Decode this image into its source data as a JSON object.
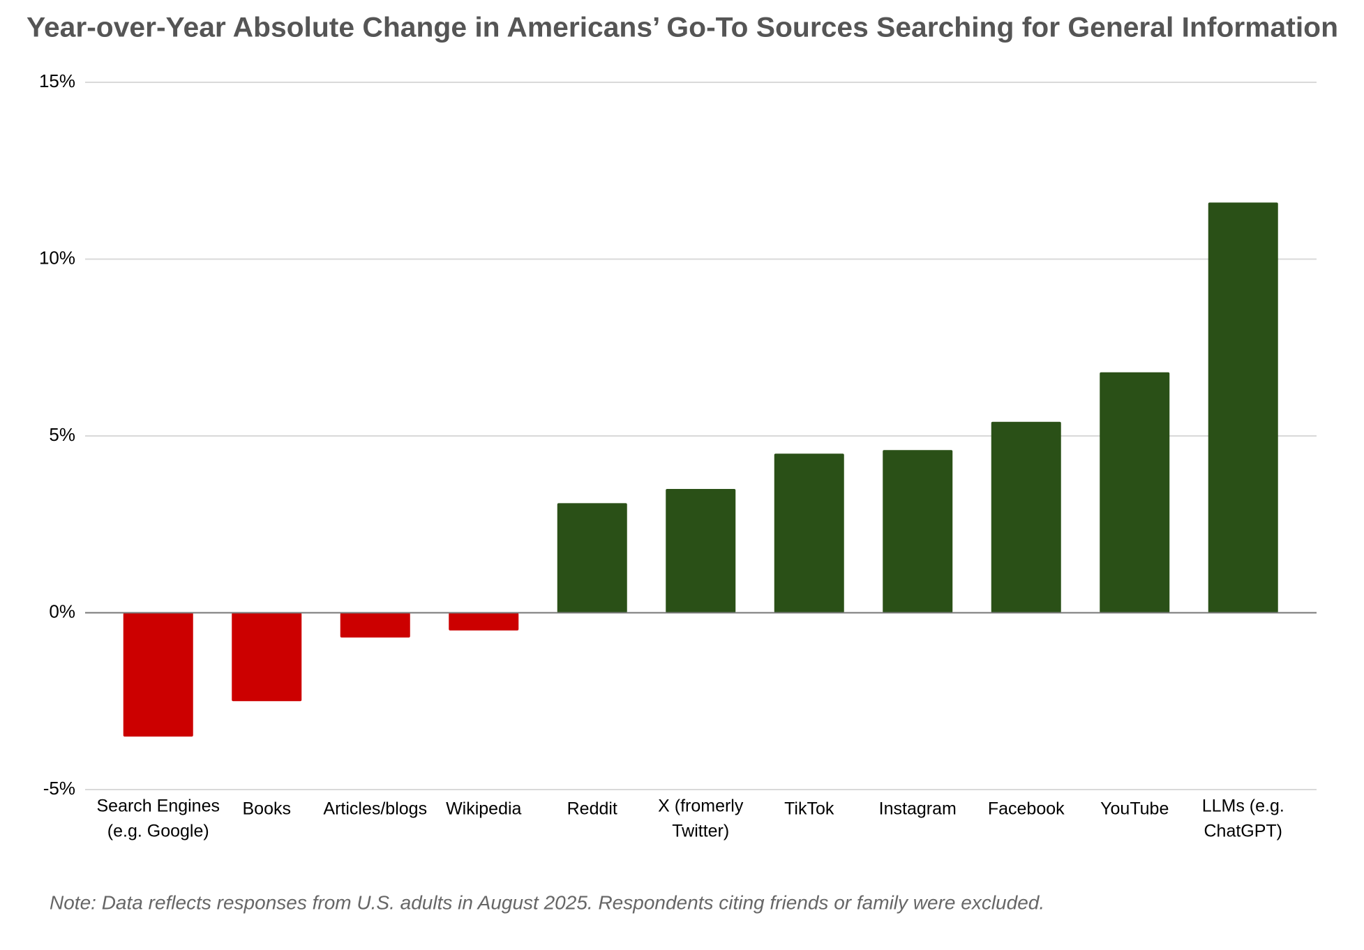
{
  "chart_data": {
    "type": "bar",
    "title": "Year-over-Year Absolute Change in Americans’ Go-To Sources Searching for General Information",
    "note": "Note: Data reflects responses from U.S. adults in August 2025. Respondents citing friends or family were excluded.",
    "categories": [
      [
        "Search Engines",
        "(e.g. Google)"
      ],
      [
        "Books"
      ],
      [
        "Articles/blogs"
      ],
      [
        "Wikipedia"
      ],
      [
        "Reddit"
      ],
      [
        "X (fromerly",
        "Twitter)"
      ],
      [
        "TikTok"
      ],
      [
        "Instagram"
      ],
      [
        "Facebook"
      ],
      [
        "YouTube"
      ],
      [
        "LLMs (e.g.",
        "ChatGPT)"
      ]
    ],
    "values": [
      -3.5,
      -2.5,
      -0.7,
      -0.5,
      3.1,
      3.5,
      4.5,
      4.6,
      5.4,
      6.8,
      11.6
    ],
    "positive_color": "#2a5017",
    "negative_color": "#cc0000",
    "ylim": [
      -5,
      15
    ],
    "yticks": [
      {
        "value": -5,
        "label": "-5%"
      },
      {
        "value": 0,
        "label": "0%"
      },
      {
        "value": 5,
        "label": "5%"
      },
      {
        "value": 10,
        "label": "10%"
      },
      {
        "value": 15,
        "label": "15%"
      }
    ],
    "grid": true
  }
}
